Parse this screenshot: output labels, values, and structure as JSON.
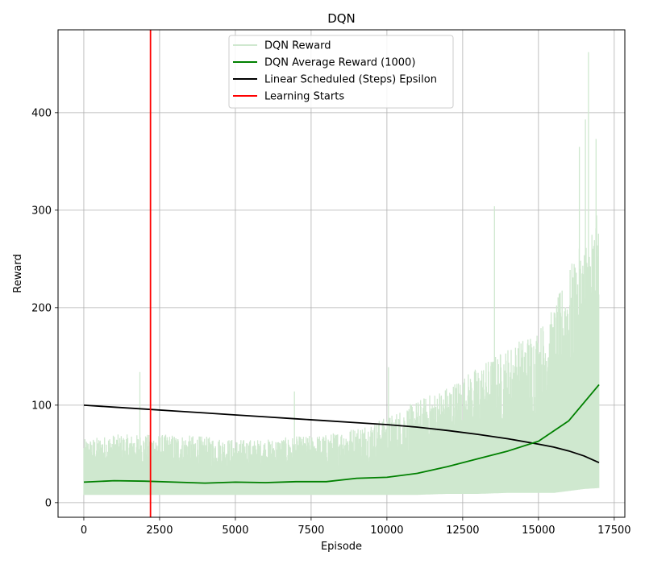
{
  "chart_data": {
    "type": "line",
    "title": "DQN",
    "xlabel": "Episode",
    "ylabel": "Reward",
    "xlim": [
      -850,
      17850
    ],
    "ylim": [
      -15,
      485
    ],
    "xticks": [
      0,
      2500,
      5000,
      7500,
      10000,
      12500,
      15000,
      17500
    ],
    "yticks": [
      0,
      100,
      200,
      300,
      400
    ],
    "grid": true,
    "legend_position": "top-center",
    "colors": {
      "reward": "#cfe8cf",
      "average": "#008000",
      "epsilon": "#000000",
      "learning_starts": "#ff0000"
    },
    "series": [
      {
        "name": "DQN Reward",
        "kind": "noisy-band",
        "x": [
          0,
          1000,
          2000,
          3000,
          4000,
          5000,
          6000,
          7000,
          8000,
          9000,
          10000,
          11000,
          12000,
          13000,
          14000,
          15000,
          15500,
          16000,
          16500,
          17000
        ],
        "low": [
          8,
          8,
          8,
          8,
          8,
          8,
          8,
          8,
          8,
          8,
          8,
          8,
          9,
          9,
          10,
          10,
          10,
          12,
          14,
          15
        ],
        "typical_high": [
          65,
          70,
          70,
          70,
          68,
          65,
          65,
          68,
          70,
          78,
          88,
          105,
          120,
          140,
          160,
          180,
          200,
          240,
          270,
          300
        ],
        "peaks": [
          {
            "x": 1850,
            "y": 134
          },
          {
            "x": 6950,
            "y": 114
          },
          {
            "x": 10050,
            "y": 139
          },
          {
            "x": 13550,
            "y": 304
          },
          {
            "x": 16350,
            "y": 365
          },
          {
            "x": 16550,
            "y": 393
          },
          {
            "x": 16650,
            "y": 462
          },
          {
            "x": 16900,
            "y": 373
          }
        ]
      },
      {
        "name": "DQN Average Reward (1000)",
        "x": [
          0,
          1000,
          2000,
          3000,
          4000,
          5000,
          6000,
          7000,
          8000,
          9000,
          10000,
          11000,
          12000,
          13000,
          14000,
          15000,
          16000,
          17000
        ],
        "y": [
          21,
          22.5,
          22,
          21,
          20,
          21,
          20.5,
          21.5,
          21.5,
          25,
          26,
          30,
          37,
          45,
          53,
          63,
          84,
          121
        ]
      },
      {
        "name": "Linear Scheduled (Steps) Epsilon",
        "x": [
          0,
          1000,
          2000,
          3000,
          4000,
          5000,
          6000,
          7000,
          8000,
          9000,
          10000,
          11000,
          12000,
          13000,
          14000,
          15000,
          15500,
          16000,
          16500,
          17000
        ],
        "y": [
          100,
          98,
          96,
          94,
          92,
          90,
          88,
          86,
          84,
          82,
          80,
          77.5,
          74,
          70,
          65.5,
          60,
          57,
          53,
          48,
          41
        ]
      },
      {
        "name": "Learning Starts",
        "kind": "vline",
        "x": 2200
      }
    ]
  }
}
